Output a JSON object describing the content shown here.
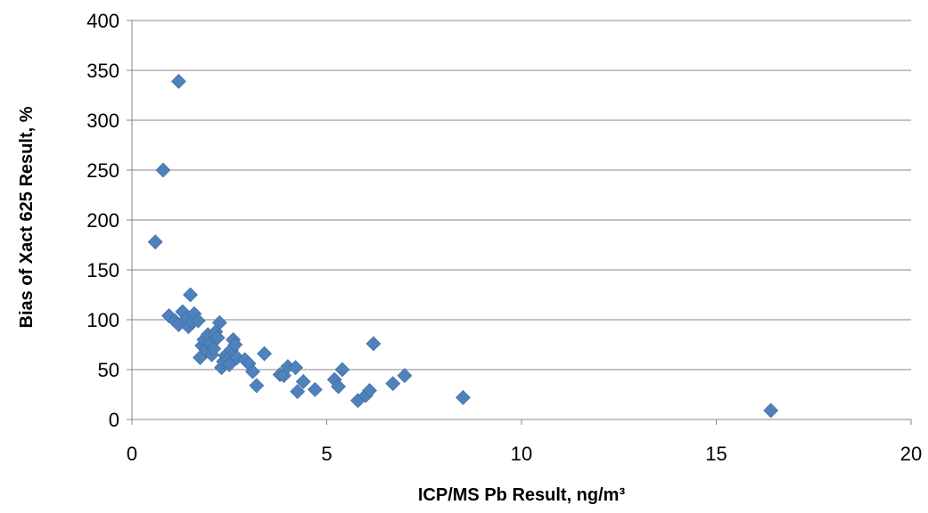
{
  "chart_data": {
    "type": "scatter",
    "title": "",
    "xlabel": "ICP/MS Pb Result, ng/m³",
    "ylabel": "Bias of Xact 625 Result, %",
    "xlim": [
      0,
      20
    ],
    "ylim": [
      0,
      400
    ],
    "xticks": [
      "0",
      "5",
      "10",
      "15",
      "20"
    ],
    "yticks": [
      "0",
      "50",
      "100",
      "150",
      "200",
      "250",
      "300",
      "350",
      "400"
    ],
    "grid": "horizontal",
    "legend": "none",
    "marker": "diamond",
    "color": "#4F81BD",
    "series": [
      {
        "points": [
          [
            0.6,
            178
          ],
          [
            0.8,
            250
          ],
          [
            1.2,
            339
          ],
          [
            0.95,
            104
          ],
          [
            1.1,
            99
          ],
          [
            1.2,
            95
          ],
          [
            1.3,
            108
          ],
          [
            1.4,
            101
          ],
          [
            1.45,
            93
          ],
          [
            1.5,
            125
          ],
          [
            1.55,
            98
          ],
          [
            1.6,
            106
          ],
          [
            1.7,
            99
          ],
          [
            1.75,
            62
          ],
          [
            1.8,
            74
          ],
          [
            1.85,
            80
          ],
          [
            1.9,
            70
          ],
          [
            1.95,
            85
          ],
          [
            2.0,
            76
          ],
          [
            2.05,
            65
          ],
          [
            2.1,
            71
          ],
          [
            2.15,
            88
          ],
          [
            2.2,
            82
          ],
          [
            2.25,
            97
          ],
          [
            2.3,
            52
          ],
          [
            2.35,
            58
          ],
          [
            2.4,
            64
          ],
          [
            2.45,
            60
          ],
          [
            2.5,
            55
          ],
          [
            2.55,
            70
          ],
          [
            2.6,
            80
          ],
          [
            2.65,
            75
          ],
          [
            2.7,
            62
          ],
          [
            2.9,
            60
          ],
          [
            3.0,
            56
          ],
          [
            3.1,
            48
          ],
          [
            3.2,
            34
          ],
          [
            3.4,
            66
          ],
          [
            3.8,
            45
          ],
          [
            3.9,
            44
          ],
          [
            4.0,
            53
          ],
          [
            4.2,
            52
          ],
          [
            4.25,
            28
          ],
          [
            4.4,
            38
          ],
          [
            4.7,
            30
          ],
          [
            5.2,
            40
          ],
          [
            5.3,
            33
          ],
          [
            5.4,
            50
          ],
          [
            5.8,
            19
          ],
          [
            6.0,
            24
          ],
          [
            6.1,
            29
          ],
          [
            6.2,
            76
          ],
          [
            6.7,
            36
          ],
          [
            7.0,
            44
          ],
          [
            8.5,
            22
          ],
          [
            16.4,
            9
          ]
        ]
      }
    ]
  }
}
